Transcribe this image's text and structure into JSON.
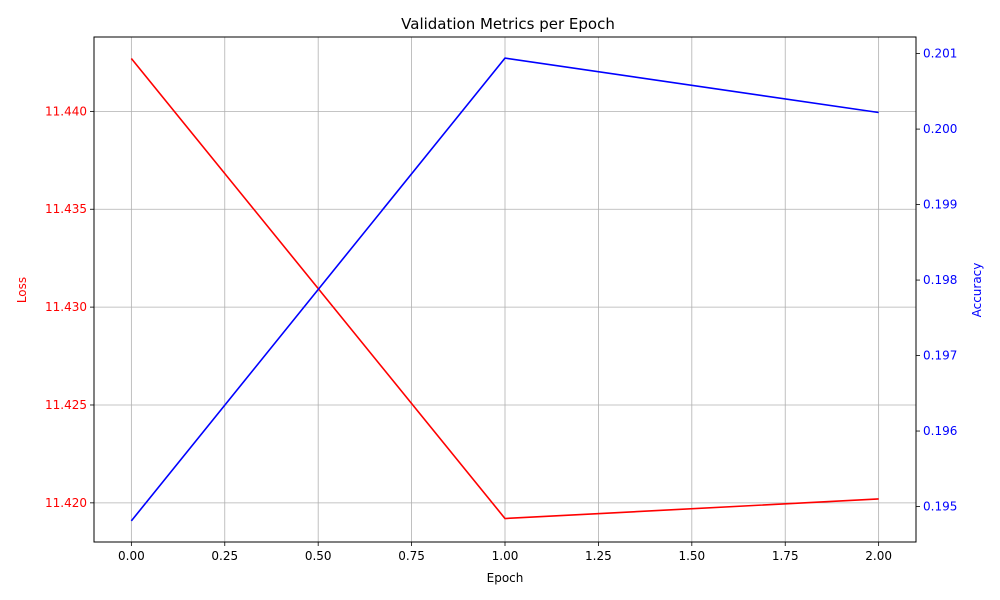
{
  "chart_data": {
    "type": "line",
    "title": "Validation Metrics per Epoch",
    "xlabel": "Epoch",
    "ylabel_left": "Loss",
    "ylabel_right": "Accuracy",
    "x": [
      0,
      1,
      2
    ],
    "xlim": [
      -0.1,
      2.1
    ],
    "xticks": [
      0.0,
      0.25,
      0.5,
      0.75,
      1.0,
      1.25,
      1.5,
      1.75,
      2.0
    ],
    "xtick_labels": [
      "0.00",
      "0.25",
      "0.50",
      "0.75",
      "1.00",
      "1.25",
      "1.50",
      "1.75",
      "2.00"
    ],
    "left_axis": {
      "ylim": [
        11.418,
        11.4438
      ],
      "ticks": [
        11.42,
        11.425,
        11.43,
        11.435,
        11.44
      ],
      "tick_labels": [
        "11.420",
        "11.425",
        "11.430",
        "11.435",
        "11.440"
      ],
      "color": "#ff0000"
    },
    "right_axis": {
      "ylim": [
        0.19453,
        0.20122
      ],
      "ticks": [
        0.195,
        0.196,
        0.197,
        0.198,
        0.199,
        0.2,
        0.201
      ],
      "tick_labels": [
        "0.195",
        "0.196",
        "0.197",
        "0.198",
        "0.199",
        "0.200",
        "0.201"
      ],
      "color": "#0000ff"
    },
    "series": [
      {
        "axis": "left",
        "color": "#ff0000",
        "values": [
          11.4427,
          11.4192,
          11.4202
        ]
      },
      {
        "axis": "right",
        "color": "#0000ff",
        "values": [
          0.19481,
          0.20094,
          0.20022
        ]
      }
    ],
    "grid": true
  }
}
